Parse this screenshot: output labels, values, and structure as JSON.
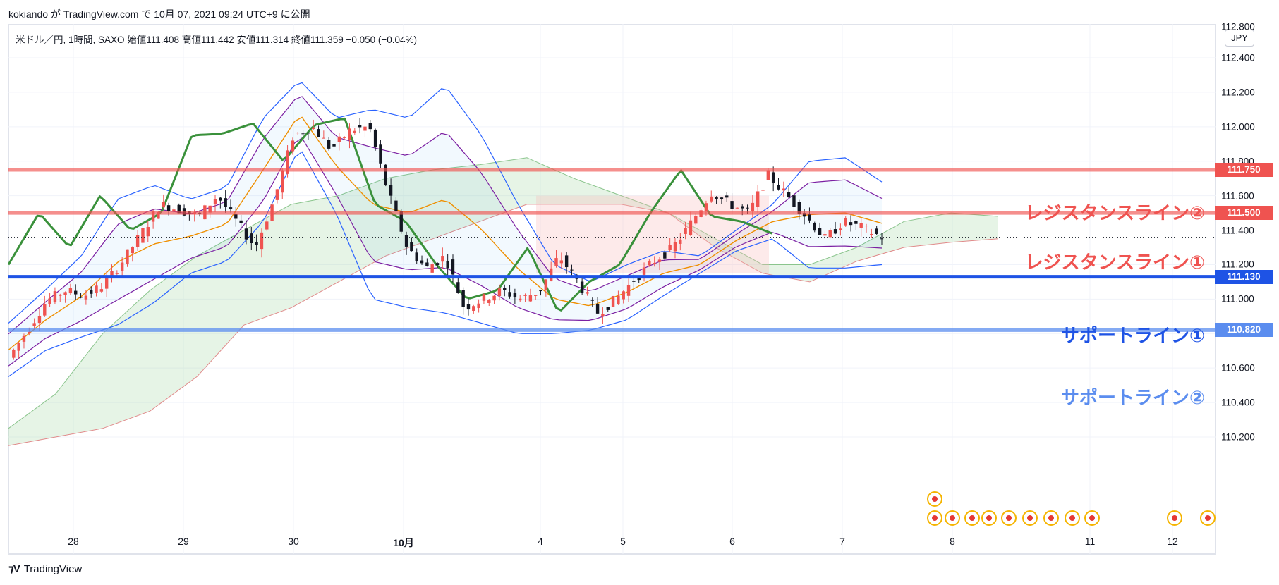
{
  "header": {
    "published_line": "kokiando が TradingView.com で 10月 07, 2021 09:24 UTC+9 に公開"
  },
  "legend": {
    "ohlc_line": "米ドル／円, 1時間, SAXO 始値111.408 高値111.442 安値111.314 終値111.359 −0.050 (−0.04%)"
  },
  "currency": "JPY",
  "footer": {
    "brand": "TradingView"
  },
  "colors": {
    "up": "#ef5350",
    "down": "#131722",
    "resistance": "#ef5350",
    "support1": "#1e53e5",
    "support2": "#5b8def",
    "rsi": "#3a913b",
    "bb_outer": "#2962ff",
    "bb_inner": "#7b1fa2",
    "ma": "#ef8f00",
    "cloud_green": "#a5d6a7",
    "cloud_red": "#f8bbbb"
  },
  "chart_data": {
    "type": "candlestick",
    "symbol": "米ドル／円",
    "timeframe": "1時間",
    "ylim": [
      110.1,
      112.9
    ],
    "y_ticks": [
      "112.800",
      "112.400",
      "112.200",
      "112.000",
      "111.800",
      "111.600",
      "111.400",
      "111.200",
      "111.000",
      "110.600",
      "110.400",
      "110.200"
    ],
    "x_ticks": [
      "28",
      "29",
      "30",
      "10月",
      "4",
      "5",
      "6",
      "7",
      "8",
      "11",
      "12"
    ],
    "horizontal_lines": [
      {
        "name": "レジスタンスライン②",
        "value": 111.75,
        "label": "111.750",
        "color": "#ef5350"
      },
      {
        "name": "レジスタンスライン①",
        "value": 111.5,
        "label": "111.500",
        "color": "#ef5350"
      },
      {
        "name": "サポートライン①",
        "value": 111.13,
        "label": "111.130",
        "color": "#1e53e5"
      },
      {
        "name": "サポートライン②",
        "value": 110.82,
        "label": "110.820",
        "color": "#5b8def"
      }
    ],
    "annotations": [
      {
        "text": "レジスタンスライン②",
        "color": "#ef5350"
      },
      {
        "text": "レジスタンスライン①",
        "color": "#ef5350"
      },
      {
        "text": "サポートライン①",
        "color": "#1e53e5"
      },
      {
        "text": "サポートライン②",
        "color": "#5b8def"
      }
    ],
    "last_close": 111.359,
    "price_path": [
      110.66,
      110.82,
      110.99,
      111.05,
      111.02,
      111.08,
      111.22,
      111.38,
      111.55,
      111.52,
      111.48,
      111.6,
      111.45,
      111.3,
      111.58,
      111.95,
      112.0,
      111.87,
      111.98,
      112.0,
      111.62,
      111.3,
      111.18,
      111.25,
      110.95,
      111.0,
      111.05,
      111.0,
      111.05,
      111.25,
      111.1,
      110.92,
      111.0,
      111.12,
      111.22,
      111.3,
      111.45,
      111.62,
      111.55,
      111.5,
      111.72,
      111.6,
      111.48,
      111.35,
      111.45,
      111.41,
      111.36
    ],
    "bb_upper": [
      110.86,
      111.05,
      111.25,
      111.58,
      111.66,
      111.58,
      111.65,
      112.05,
      112.27,
      112.05,
      112.1,
      112.05,
      112.24,
      111.95,
      111.55,
      111.2,
      111.1,
      111.2,
      111.28,
      111.25,
      111.4,
      111.55,
      111.8,
      111.82,
      111.68
    ],
    "bb_lower": [
      110.55,
      110.7,
      110.78,
      110.85,
      110.98,
      111.15,
      111.22,
      111.45,
      111.88,
      111.5,
      111.0,
      110.95,
      110.92,
      110.86,
      110.8,
      110.8,
      110.82,
      110.88,
      111.02,
      111.15,
      111.28,
      111.35,
      111.18,
      111.18,
      111.2
    ],
    "rsi_path": [
      111.2,
      111.5,
      111.3,
      111.6,
      111.4,
      111.5,
      111.95,
      111.96,
      112.02,
      111.8,
      112.01,
      112.05,
      111.55,
      111.45,
      111.2,
      111.0,
      111.05,
      111.3,
      110.92,
      111.1,
      111.2,
      111.5,
      111.75,
      111.48,
      111.45,
      111.38
    ]
  }
}
